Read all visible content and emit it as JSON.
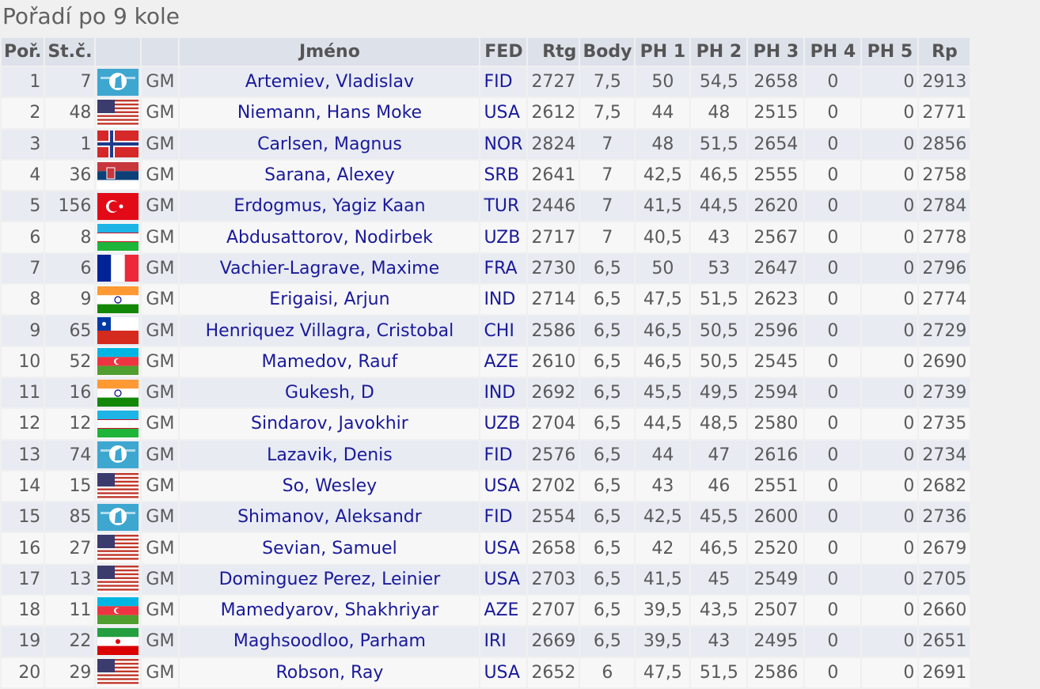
{
  "title": "Pořadí po 9 kole",
  "headers": [
    "Poř.",
    "St.č.",
    "",
    "",
    "Jméno",
    "FED",
    "Rtg",
    "Body",
    "PH 1",
    "PH 2",
    "PH 3",
    "PH 4",
    "PH 5",
    "Rp"
  ],
  "rows": [
    [
      "1",
      "7",
      "FID",
      "GM",
      "Artemiev, Vladislav",
      "FID",
      "2727",
      "7,5",
      "50",
      "54,5",
      "2658",
      "0",
      "0",
      "2913"
    ],
    [
      "2",
      "48",
      "USA",
      "GM",
      "Niemann, Hans Moke",
      "USA",
      "2612",
      "7,5",
      "44",
      "48",
      "2515",
      "0",
      "0",
      "2771"
    ],
    [
      "3",
      "1",
      "NOR",
      "GM",
      "Carlsen, Magnus",
      "NOR",
      "2824",
      "7",
      "48",
      "51,5",
      "2654",
      "0",
      "0",
      "2856"
    ],
    [
      "4",
      "36",
      "SRB",
      "GM",
      "Sarana, Alexey",
      "SRB",
      "2641",
      "7",
      "42,5",
      "46,5",
      "2555",
      "0",
      "0",
      "2758"
    ],
    [
      "5",
      "156",
      "TUR",
      "GM",
      "Erdogmus, Yagiz Kaan",
      "TUR",
      "2446",
      "7",
      "41,5",
      "44,5",
      "2620",
      "0",
      "0",
      "2784"
    ],
    [
      "6",
      "8",
      "UZB",
      "GM",
      "Abdusattorov, Nodirbek",
      "UZB",
      "2717",
      "7",
      "40,5",
      "43",
      "2567",
      "0",
      "0",
      "2778"
    ],
    [
      "7",
      "6",
      "FRA",
      "GM",
      "Vachier-Lagrave, Maxime",
      "FRA",
      "2730",
      "6,5",
      "50",
      "53",
      "2647",
      "0",
      "0",
      "2796"
    ],
    [
      "8",
      "9",
      "IND",
      "GM",
      "Erigaisi, Arjun",
      "IND",
      "2714",
      "6,5",
      "47,5",
      "51,5",
      "2623",
      "0",
      "0",
      "2774"
    ],
    [
      "9",
      "65",
      "CHI",
      "GM",
      "Henriquez Villagra, Cristobal",
      "CHI",
      "2586",
      "6,5",
      "46,5",
      "50,5",
      "2596",
      "0",
      "0",
      "2729"
    ],
    [
      "10",
      "52",
      "AZE",
      "GM",
      "Mamedov, Rauf",
      "AZE",
      "2610",
      "6,5",
      "46,5",
      "50,5",
      "2545",
      "0",
      "0",
      "2690"
    ],
    [
      "11",
      "16",
      "IND",
      "GM",
      "Gukesh, D",
      "IND",
      "2692",
      "6,5",
      "45,5",
      "49,5",
      "2594",
      "0",
      "0",
      "2739"
    ],
    [
      "12",
      "12",
      "UZB",
      "GM",
      "Sindarov, Javokhir",
      "UZB",
      "2704",
      "6,5",
      "44,5",
      "48,5",
      "2580",
      "0",
      "0",
      "2735"
    ],
    [
      "13",
      "74",
      "FID",
      "GM",
      "Lazavik, Denis",
      "FID",
      "2576",
      "6,5",
      "44",
      "47",
      "2616",
      "0",
      "0",
      "2734"
    ],
    [
      "14",
      "15",
      "USA",
      "GM",
      "So, Wesley",
      "USA",
      "2702",
      "6,5",
      "43",
      "46",
      "2551",
      "0",
      "0",
      "2682"
    ],
    [
      "15",
      "85",
      "FID",
      "GM",
      "Shimanov, Aleksandr",
      "FID",
      "2554",
      "6,5",
      "42,5",
      "45,5",
      "2600",
      "0",
      "0",
      "2736"
    ],
    [
      "16",
      "27",
      "USA",
      "GM",
      "Sevian, Samuel",
      "USA",
      "2658",
      "6,5",
      "42",
      "46,5",
      "2520",
      "0",
      "0",
      "2679"
    ],
    [
      "17",
      "13",
      "USA",
      "GM",
      "Dominguez Perez, Leinier",
      "USA",
      "2703",
      "6,5",
      "41,5",
      "45",
      "2549",
      "0",
      "0",
      "2705"
    ],
    [
      "18",
      "11",
      "AZE",
      "GM",
      "Mamedyarov, Shakhriyar",
      "AZE",
      "2707",
      "6,5",
      "39,5",
      "43,5",
      "2507",
      "0",
      "0",
      "2660"
    ],
    [
      "19",
      "22",
      "IRI",
      "GM",
      "Maghsoodloo, Parham",
      "IRI",
      "2669",
      "6,5",
      "39,5",
      "43",
      "2495",
      "0",
      "0",
      "2651"
    ],
    [
      "20",
      "29",
      "USA",
      "GM",
      "Robson, Ray",
      "USA",
      "2652",
      "6",
      "47,5",
      "51,5",
      "2586",
      "0",
      "0",
      "2691"
    ]
  ]
}
